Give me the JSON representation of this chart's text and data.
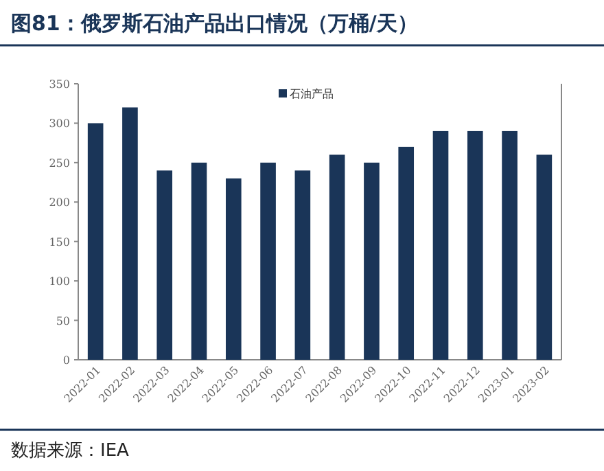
{
  "chart_data": {
    "type": "bar",
    "title": "图81：俄罗斯石油产品出口情况（万桶/天）",
    "categories": [
      "2022-01",
      "2022-02",
      "2022-03",
      "2022-04",
      "2022-05",
      "2022-06",
      "2022-07",
      "2022-08",
      "2022-09",
      "2022-10",
      "2022-11",
      "2022-12",
      "2023-01",
      "2023-02"
    ],
    "series": [
      {
        "name": "石油产品",
        "color": "#1a3558",
        "values": [
          300,
          320,
          240,
          250,
          230,
          250,
          240,
          260,
          250,
          270,
          290,
          290,
          290,
          260
        ]
      }
    ],
    "ylim": [
      0,
      350
    ],
    "yticks": [
      0,
      50,
      100,
      150,
      200,
      250,
      300,
      350
    ],
    "grid": false,
    "legend": "top",
    "annotations": [
      "数据来源：IEA"
    ]
  }
}
